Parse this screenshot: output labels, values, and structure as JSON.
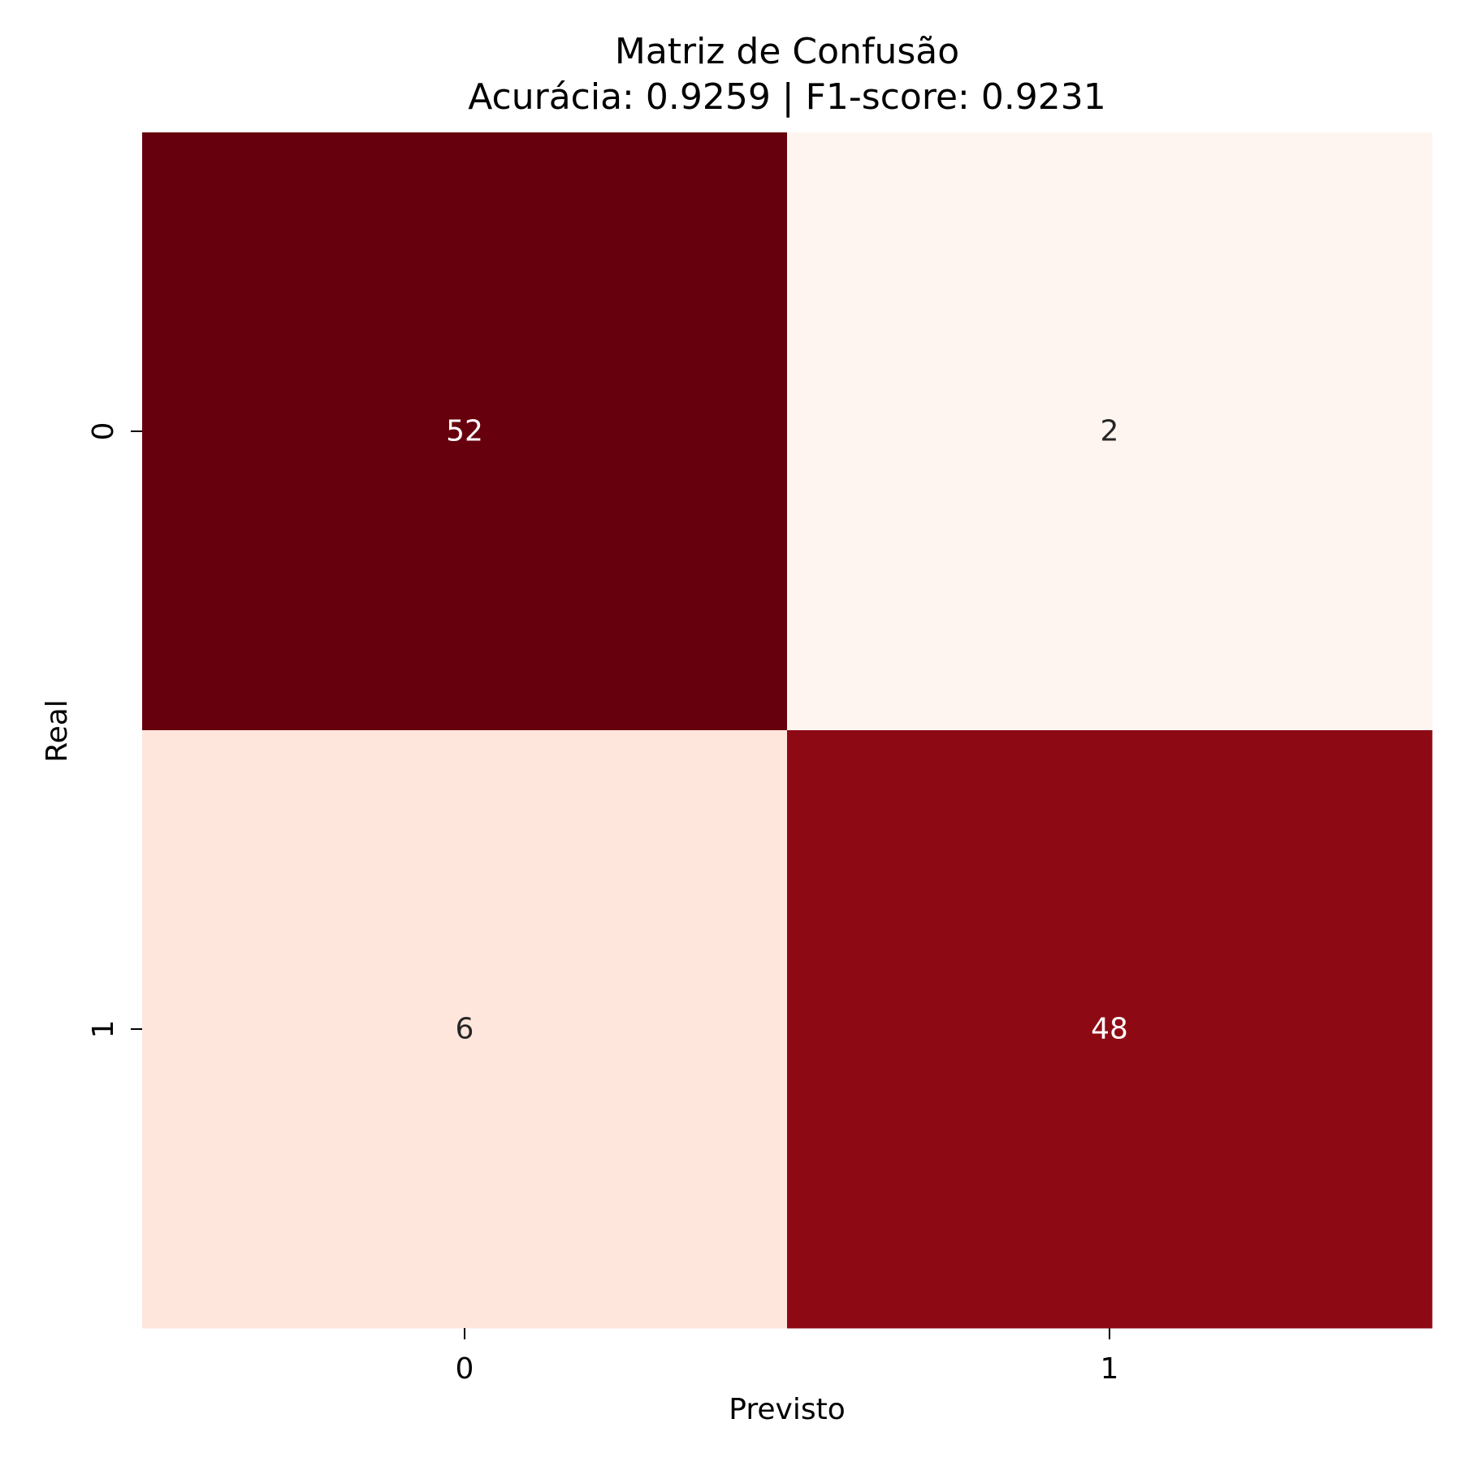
{
  "chart_data": {
    "type": "heatmap",
    "title": "Matriz de Confusão",
    "subtitle": "Acurácia: 0.9259 | F1-score: 0.9231",
    "xlabel": "Previsto",
    "ylabel": "Real",
    "x_categories": [
      "0",
      "1"
    ],
    "y_categories": [
      "0",
      "1"
    ],
    "values": [
      [
        52,
        2
      ],
      [
        6,
        48
      ]
    ],
    "colorscale": "Reds",
    "vmin": 2,
    "vmax": 52,
    "colorbar": false,
    "cell_colors": [
      [
        "#67000d",
        "#fff5f0"
      ],
      [
        "#fee6dc",
        "#8d0a14"
      ]
    ],
    "annotation_colors": [
      [
        "#ffffff",
        "#262626"
      ],
      [
        "#262626",
        "#ffffff"
      ]
    ]
  }
}
